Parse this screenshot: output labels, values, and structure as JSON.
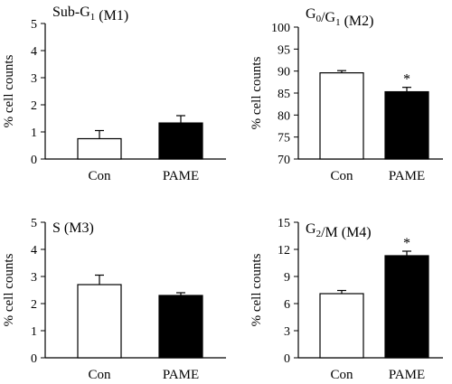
{
  "figure": {
    "y_label": "% cell counts"
  },
  "chart_data": [
    {
      "type": "bar",
      "title": "Sub-G1 (M1)",
      "title_parts": {
        "pre": "Sub-G",
        "sub": "1",
        "post": " (M1)"
      },
      "ylabel": "% cell counts",
      "categories": [
        "Con",
        "PAME"
      ],
      "values": [
        0.75,
        1.33
      ],
      "errors": [
        0.3,
        0.27
      ],
      "significant": [
        false,
        false
      ],
      "bar_fill": [
        "#ffffff",
        "#000000"
      ],
      "ylim": [
        0,
        5
      ],
      "yticks": [
        0,
        1,
        2,
        3,
        4,
        5
      ]
    },
    {
      "type": "bar",
      "title": "G0/G1 (M2)",
      "title_parts": {
        "pre": "G",
        "sub": "0",
        "mid": "/G",
        "sub2": "1",
        "post": " (M2)"
      },
      "ylabel": "% cell counts",
      "categories": [
        "Con",
        "PAME"
      ],
      "values": [
        89.6,
        85.3
      ],
      "errors": [
        0.5,
        1.0
      ],
      "significant": [
        false,
        true
      ],
      "sig_marker": "*",
      "bar_fill": [
        "#ffffff",
        "#000000"
      ],
      "ylim": [
        70,
        100
      ],
      "yticks": [
        70,
        75,
        80,
        85,
        90,
        95,
        100
      ]
    },
    {
      "type": "bar",
      "title": "S (M3)",
      "title_parts": {
        "pre": "S (M3)"
      },
      "ylabel": "% cell counts",
      "categories": [
        "Con",
        "PAME"
      ],
      "values": [
        2.7,
        2.3
      ],
      "errors": [
        0.35,
        0.1
      ],
      "significant": [
        false,
        false
      ],
      "bar_fill": [
        "#ffffff",
        "#000000"
      ],
      "ylim": [
        0,
        5
      ],
      "yticks": [
        0,
        1,
        2,
        3,
        4,
        5
      ]
    },
    {
      "type": "bar",
      "title": "G2/M (M4)",
      "title_parts": {
        "pre": "G",
        "sub": "2",
        "post": "/M (M4)"
      },
      "ylabel": "% cell counts",
      "categories": [
        "Con",
        "PAME"
      ],
      "values": [
        7.1,
        11.3
      ],
      "errors": [
        0.35,
        0.5
      ],
      "significant": [
        false,
        true
      ],
      "sig_marker": "*",
      "bar_fill": [
        "#ffffff",
        "#000000"
      ],
      "ylim": [
        0,
        15
      ],
      "yticks": [
        0,
        3,
        6,
        9,
        12,
        15
      ]
    }
  ]
}
